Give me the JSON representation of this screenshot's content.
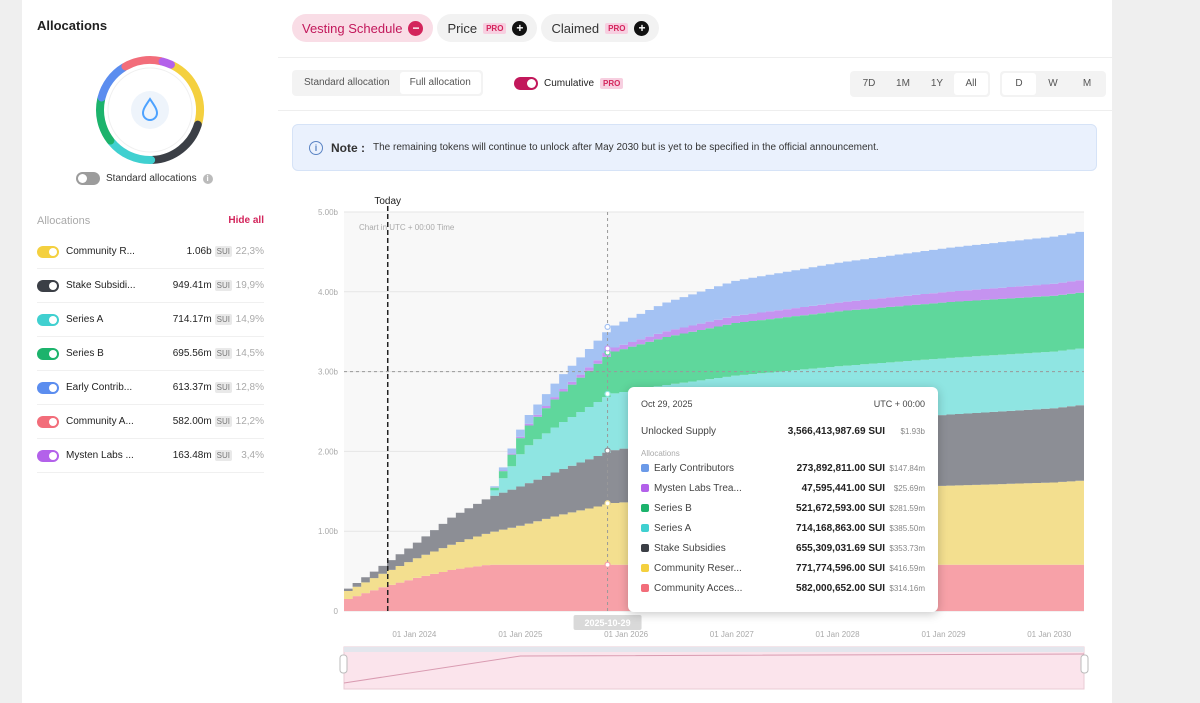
{
  "left": {
    "title": "Allocations",
    "standard_label": "Standard allocations",
    "list_label": "Allocations",
    "hide_all": "Hide all",
    "items": [
      {
        "name": "Community R...",
        "value": "1.06b",
        "unit": "SUI",
        "pct": "22,3%",
        "color": "#f4d03f"
      },
      {
        "name": "Stake Subsidi...",
        "value": "949.41m",
        "unit": "SUI",
        "pct": "19,9%",
        "color": "#3b3f46"
      },
      {
        "name": "Series A",
        "value": "714.17m",
        "unit": "SUI",
        "pct": "14,9%",
        "color": "#40d0d0"
      },
      {
        "name": "Series B",
        "value": "695.56m",
        "unit": "SUI",
        "pct": "14,5%",
        "color": "#1cb36c"
      },
      {
        "name": "Early Contrib...",
        "value": "613.37m",
        "unit": "SUI",
        "pct": "12,8%",
        "color": "#5b8def"
      },
      {
        "name": "Community A...",
        "value": "582.00m",
        "unit": "SUI",
        "pct": "12,2%",
        "color": "#f26d7a"
      },
      {
        "name": "Mysten Labs ...",
        "value": "163.48m",
        "unit": "SUI",
        "pct": "3,4%",
        "color": "#b361ea"
      }
    ]
  },
  "tabs": [
    {
      "label": "Vesting Schedule",
      "icon": "−",
      "pro": ""
    },
    {
      "label": "Price",
      "icon": "+",
      "pro": "PRO"
    },
    {
      "label": "Claimed",
      "icon": "+",
      "pro": "PRO"
    }
  ],
  "toolbar": {
    "standard": "Standard allocation",
    "full": "Full allocation",
    "cumulative": "Cumulative",
    "pro": "PRO",
    "ranges": [
      "7D",
      "1M",
      "1Y",
      "All"
    ],
    "intervals": [
      "D",
      "W",
      "M"
    ]
  },
  "note": {
    "title": "Note :",
    "text": "The remaining tokens will continue to unlock after May 2030 but is yet to be specified in the official announcement."
  },
  "chart_data": {
    "type": "area",
    "stacked": true,
    "subtitle": "Chart in UTC + 00:00 Time",
    "marker_label": "Today",
    "hover_label": "2025-10-29",
    "y_ticks": [
      "0",
      "1.00b",
      "2.00b",
      "3.00b",
      "4.00b",
      "5.00b"
    ],
    "x_ticks": [
      "01 Jan 2024",
      "01 Jan 2025",
      "01 Jan 2026",
      "01 Jan 2027",
      "01 Jan 2028",
      "01 Jan 2029",
      "01 Jan 2030"
    ],
    "ylim": [
      0,
      5000000000
    ],
    "x": [
      "2023-05-03",
      "2023-09-01",
      "2024-01-01",
      "2024-05-01",
      "2024-09-01",
      "2025-01-01",
      "2025-05-01",
      "2025-10-29",
      "2026-05-01",
      "2027-01-01",
      "2028-01-01",
      "2029-01-01",
      "2030-01-01",
      "2030-05-01"
    ],
    "series": [
      {
        "name": "Community Access Program",
        "color": "#f7a1a8",
        "values": [
          0.15,
          0.3,
          0.42,
          0.52,
          0.58,
          0.58,
          0.58,
          0.58,
          0.58,
          0.58,
          0.58,
          0.58,
          0.58,
          0.58
        ]
      },
      {
        "name": "Community Reserve",
        "color": "#f3df8f",
        "values": [
          0.1,
          0.17,
          0.25,
          0.32,
          0.4,
          0.5,
          0.62,
          0.77,
          0.82,
          0.88,
          0.94,
          0.99,
          1.03,
          1.06
        ]
      },
      {
        "name": "Stake Subsidies",
        "color": "#8c8e95",
        "values": [
          0.03,
          0.1,
          0.2,
          0.35,
          0.44,
          0.5,
          0.56,
          0.66,
          0.72,
          0.78,
          0.84,
          0.89,
          0.93,
          0.95
        ]
      },
      {
        "name": "Series A",
        "color": "#8fe5e2",
        "values": [
          0.0,
          0.0,
          0.0,
          0.0,
          0.0,
          0.46,
          0.58,
          0.71,
          0.71,
          0.71,
          0.71,
          0.71,
          0.71,
          0.71
        ]
      },
      {
        "name": "Series B",
        "color": "#5fd79c",
        "values": [
          0.0,
          0.0,
          0.0,
          0.0,
          0.0,
          0.23,
          0.37,
          0.52,
          0.6,
          0.66,
          0.69,
          0.7,
          0.7,
          0.7
        ]
      },
      {
        "name": "Mysten Labs Treasury",
        "color": "#c593f0",
        "values": [
          0.0,
          0.0,
          0.0,
          0.0,
          0.0,
          0.02,
          0.03,
          0.05,
          0.07,
          0.09,
          0.11,
          0.13,
          0.15,
          0.16
        ]
      },
      {
        "name": "Early Contributors",
        "color": "#a4c2f3",
        "values": [
          0.0,
          0.0,
          0.0,
          0.0,
          0.0,
          0.1,
          0.18,
          0.27,
          0.36,
          0.44,
          0.5,
          0.55,
          0.59,
          0.61
        ]
      }
    ]
  },
  "tooltip": {
    "date": "Oct 29, 2025",
    "tz": "UTC + 00:00",
    "summary_label": "Unlocked Supply",
    "summary_value": "3,566,413,987.69 SUI",
    "summary_usd": "$1.93b",
    "section": "Allocations",
    "rows": [
      {
        "name": "Early Contributors",
        "value": "273,892,811.00 SUI",
        "usd": "$147.84m",
        "color": "#6b9ae8"
      },
      {
        "name": "Mysten Labs Trea...",
        "value": "47,595,441.00 SUI",
        "usd": "$25.69m",
        "color": "#b361ea"
      },
      {
        "name": "Series B",
        "value": "521,672,593.00 SUI",
        "usd": "$281.59m",
        "color": "#1cb36c"
      },
      {
        "name": "Series A",
        "value": "714,168,863.00 SUI",
        "usd": "$385.50m",
        "color": "#40d0d0"
      },
      {
        "name": "Stake Subsidies",
        "value": "655,309,031.69 SUI",
        "usd": "$353.73m",
        "color": "#3b3f46"
      },
      {
        "name": "Community Reser...",
        "value": "771,774,596.00 SUI",
        "usd": "$416.59m",
        "color": "#f4d03f"
      },
      {
        "name": "Community Acces...",
        "value": "582,000,652.00 SUI",
        "usd": "$314.16m",
        "color": "#f26d7a"
      }
    ]
  }
}
